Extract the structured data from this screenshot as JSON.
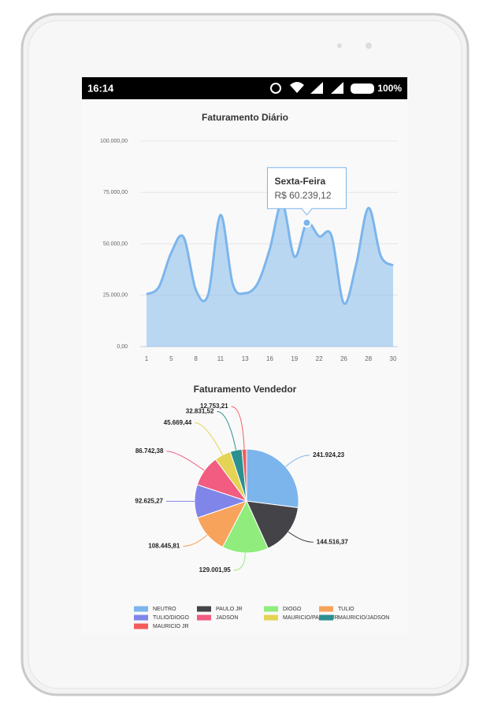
{
  "status_bar": {
    "time": "16:14",
    "battery": "100%"
  },
  "chart_data": [
    {
      "type": "line",
      "title": "Faturamento Diário",
      "categories": [
        "1",
        null,
        "5",
        null,
        "8",
        null,
        "11",
        null,
        "13",
        null,
        "16",
        null,
        "19",
        null,
        "22",
        null,
        "26",
        null,
        "28",
        null,
        "30"
      ],
      "series": [
        {
          "name": "Faturamento",
          "color": "#7cb5ec",
          "values": [
            25500,
            29000,
            45600,
            53300,
            27600,
            25300,
            64000,
            30300,
            26000,
            30600,
            47500,
            69700,
            43700,
            60239.12,
            53600,
            54000,
            21100,
            39800,
            67400,
            44100,
            39500
          ]
        }
      ],
      "ylim": [
        0,
        100000
      ],
      "yticks": [
        {
          "value": 0,
          "label": "0,00"
        },
        {
          "value": 25000,
          "label": "25.000,00"
        },
        {
          "value": 50000,
          "label": "50.000,00"
        },
        {
          "value": 75000,
          "label": "75.000,00"
        },
        {
          "value": 100000,
          "label": "100.000,00"
        }
      ],
      "grid": true,
      "tooltip": {
        "title": "Sexta-Feira",
        "label": "R$ 60.239,12"
      }
    },
    {
      "type": "pie",
      "title": "Faturamento Vendedor",
      "categories": [
        "NEUTRO",
        "PAULO JR",
        "DIOGO",
        "TULIO",
        "TULIO/DIOGO",
        "JADSON",
        "MAURICIO/PAULO JR",
        "MAURICIO/JADSON",
        "MAURICIO JR"
      ],
      "values": [
        241924.23,
        144516.37,
        129001.95,
        108445.81,
        92625.27,
        86742.38,
        45669.44,
        32831.52,
        12753.21
      ],
      "value_labels": [
        "241.924,23",
        "144.516,37",
        "129.001,95",
        "108.445,81",
        "92.625,27",
        "86.742,38",
        "45.669,44",
        "32.831,52",
        "12.753,21"
      ],
      "colors": [
        "#7cb5ec",
        "#434348",
        "#90ed7d",
        "#f7a35c",
        "#8085e9",
        "#f15c80",
        "#e4d354",
        "#2b908f",
        "#f45b5b"
      ],
      "legend": "bottom"
    }
  ]
}
